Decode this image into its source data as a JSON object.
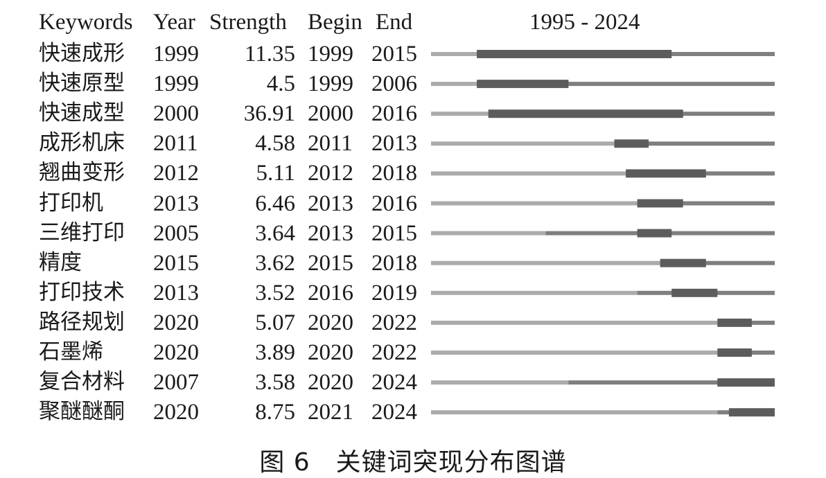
{
  "headers": {
    "keywords": "Keywords",
    "year": "Year",
    "strength": "Strength",
    "begin": "Begin",
    "end": "End",
    "range": "1995 - 2024"
  },
  "caption": "图 6　关键词突现分布图谱",
  "chart_data": {
    "type": "table",
    "range": [
      1995,
      2024
    ],
    "colors": {
      "before_appear": "#ababab",
      "active": "#7f7f7f",
      "burst": "#5c5c5c"
    },
    "columns": [
      "Keywords",
      "Year",
      "Strength",
      "Begin",
      "End"
    ],
    "rows": [
      {
        "keyword": "快速成形",
        "year": "1999",
        "strength": "11.35",
        "begin": "1999",
        "end": "2015"
      },
      {
        "keyword": "快速原型",
        "year": "1999",
        "strength": "4.5",
        "begin": "1999",
        "end": "2006"
      },
      {
        "keyword": "快速成型",
        "year": "2000",
        "strength": "36.91",
        "begin": "2000",
        "end": "2016"
      },
      {
        "keyword": "成形机床",
        "year": "2011",
        "strength": "4.58",
        "begin": "2011",
        "end": "2013"
      },
      {
        "keyword": "翘曲变形",
        "year": "2012",
        "strength": "5.11",
        "begin": "2012",
        "end": "2018"
      },
      {
        "keyword": "打印机",
        "year": "2013",
        "strength": "6.46",
        "begin": "2013",
        "end": "2016"
      },
      {
        "keyword": "三维打印",
        "year": "2005",
        "strength": "3.64",
        "begin": "2013",
        "end": "2015"
      },
      {
        "keyword": "精度",
        "year": "2015",
        "strength": "3.62",
        "begin": "2015",
        "end": "2018"
      },
      {
        "keyword": "打印技术",
        "year": "2013",
        "strength": "3.52",
        "begin": "2016",
        "end": "2019"
      },
      {
        "keyword": "路径规划",
        "year": "2020",
        "strength": "5.07",
        "begin": "2020",
        "end": "2022"
      },
      {
        "keyword": "石墨烯",
        "year": "2020",
        "strength": "3.89",
        "begin": "2020",
        "end": "2022"
      },
      {
        "keyword": "复合材料",
        "year": "2007",
        "strength": "3.58",
        "begin": "2020",
        "end": "2024"
      },
      {
        "keyword": "聚醚醚酮",
        "year": "2020",
        "strength": "8.75",
        "begin": "2021",
        "end": "2024"
      }
    ]
  }
}
